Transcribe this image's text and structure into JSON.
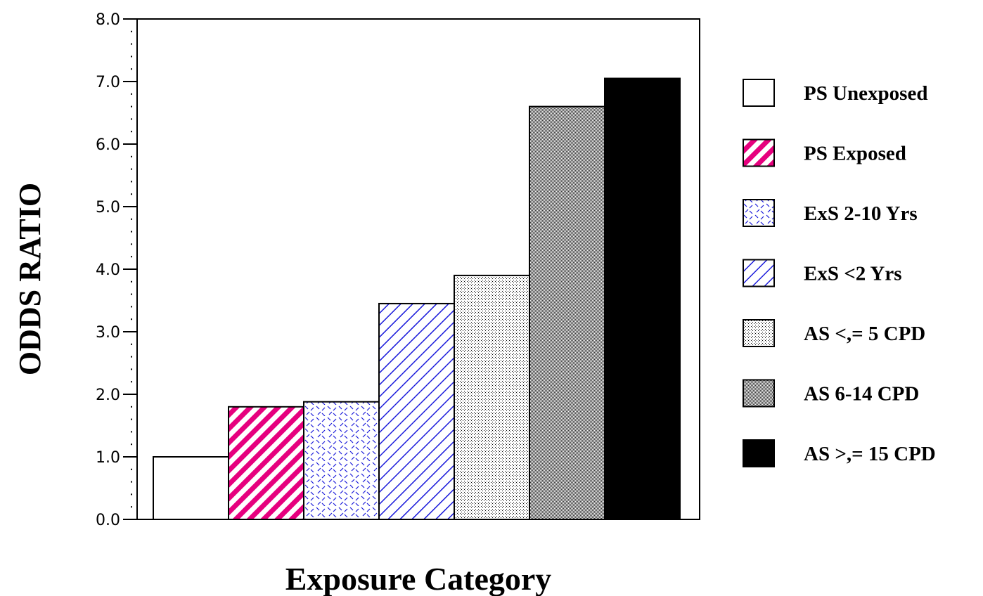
{
  "chart_data": {
    "type": "bar",
    "title": "",
    "xlabel": "Exposure Category",
    "ylabel": "ODDS RATIO",
    "ylim": [
      0,
      8
    ],
    "y_ticks": [
      "0.0",
      "1.0",
      "2.0",
      "3.0",
      "4.0",
      "5.0",
      "6.0",
      "7.0",
      "8.0"
    ],
    "grid": false,
    "legend_position": "right",
    "series": [
      {
        "name": "PS Unexposed",
        "value": 1.0,
        "color": "#ffffff",
        "pattern": "empty"
      },
      {
        "name": "PS Exposed",
        "value": 1.8,
        "color": "#e6007e",
        "pattern": "thick-diagonal"
      },
      {
        "name": "ExS 2-10 Yrs",
        "value": 1.88,
        "color": "#1a1adb",
        "pattern": "dashes"
      },
      {
        "name": "ExS <2 Yrs",
        "value": 3.45,
        "color": "#1a1adb",
        "pattern": "thin-diagonal"
      },
      {
        "name": "AS <,= 5 CPD",
        "value": 3.9,
        "color": "#000000",
        "pattern": "light-dots"
      },
      {
        "name": "AS 6-14 CPD",
        "value": 6.6,
        "color": "#000000",
        "pattern": "dense-dots"
      },
      {
        "name": "AS >,= 15 CPD",
        "value": 7.05,
        "color": "#000000",
        "pattern": "solid"
      }
    ]
  }
}
